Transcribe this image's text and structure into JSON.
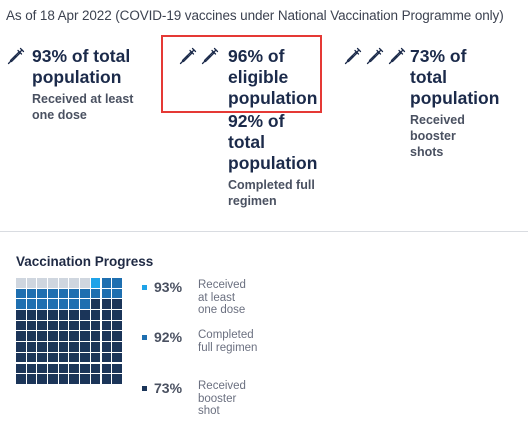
{
  "header": {
    "as_of": "As of 18 Apr 2022 (COVID-19 vaccines under National Vaccination Programme only)"
  },
  "stats": [
    {
      "icon_count": 1,
      "icon": "syringe-icon",
      "headline": "93% of total population",
      "caption": "Received at least one dose"
    },
    {
      "icon_count": 2,
      "icon": "syringe-icon",
      "headline_a": "96% of eligible population",
      "headline_b": "92% of total population",
      "caption": "Completed full regimen",
      "highlighted": true
    },
    {
      "icon_count": 3,
      "icon": "syringe-icon",
      "headline": "73% of total population",
      "caption": "Received booster shots"
    }
  ],
  "progress": {
    "title": "Vaccination Progress",
    "colors": {
      "at_least_one_dose": "#1fa3e8",
      "full_regimen": "#1e6fb0",
      "booster": "#1b3559",
      "empty": "#cfd6df"
    },
    "legend": [
      {
        "pct": "93%",
        "label": "Received at least one dose",
        "color": "#1fa3e8",
        "value": 93
      },
      {
        "pct": "92%",
        "label": "Completed full regimen",
        "color": "#1e6fb0",
        "value": 92
      },
      {
        "pct": "73%",
        "label": "Received booster shot",
        "color": "#1b3559",
        "value": 73
      }
    ]
  },
  "accent_color": "#e53935"
}
